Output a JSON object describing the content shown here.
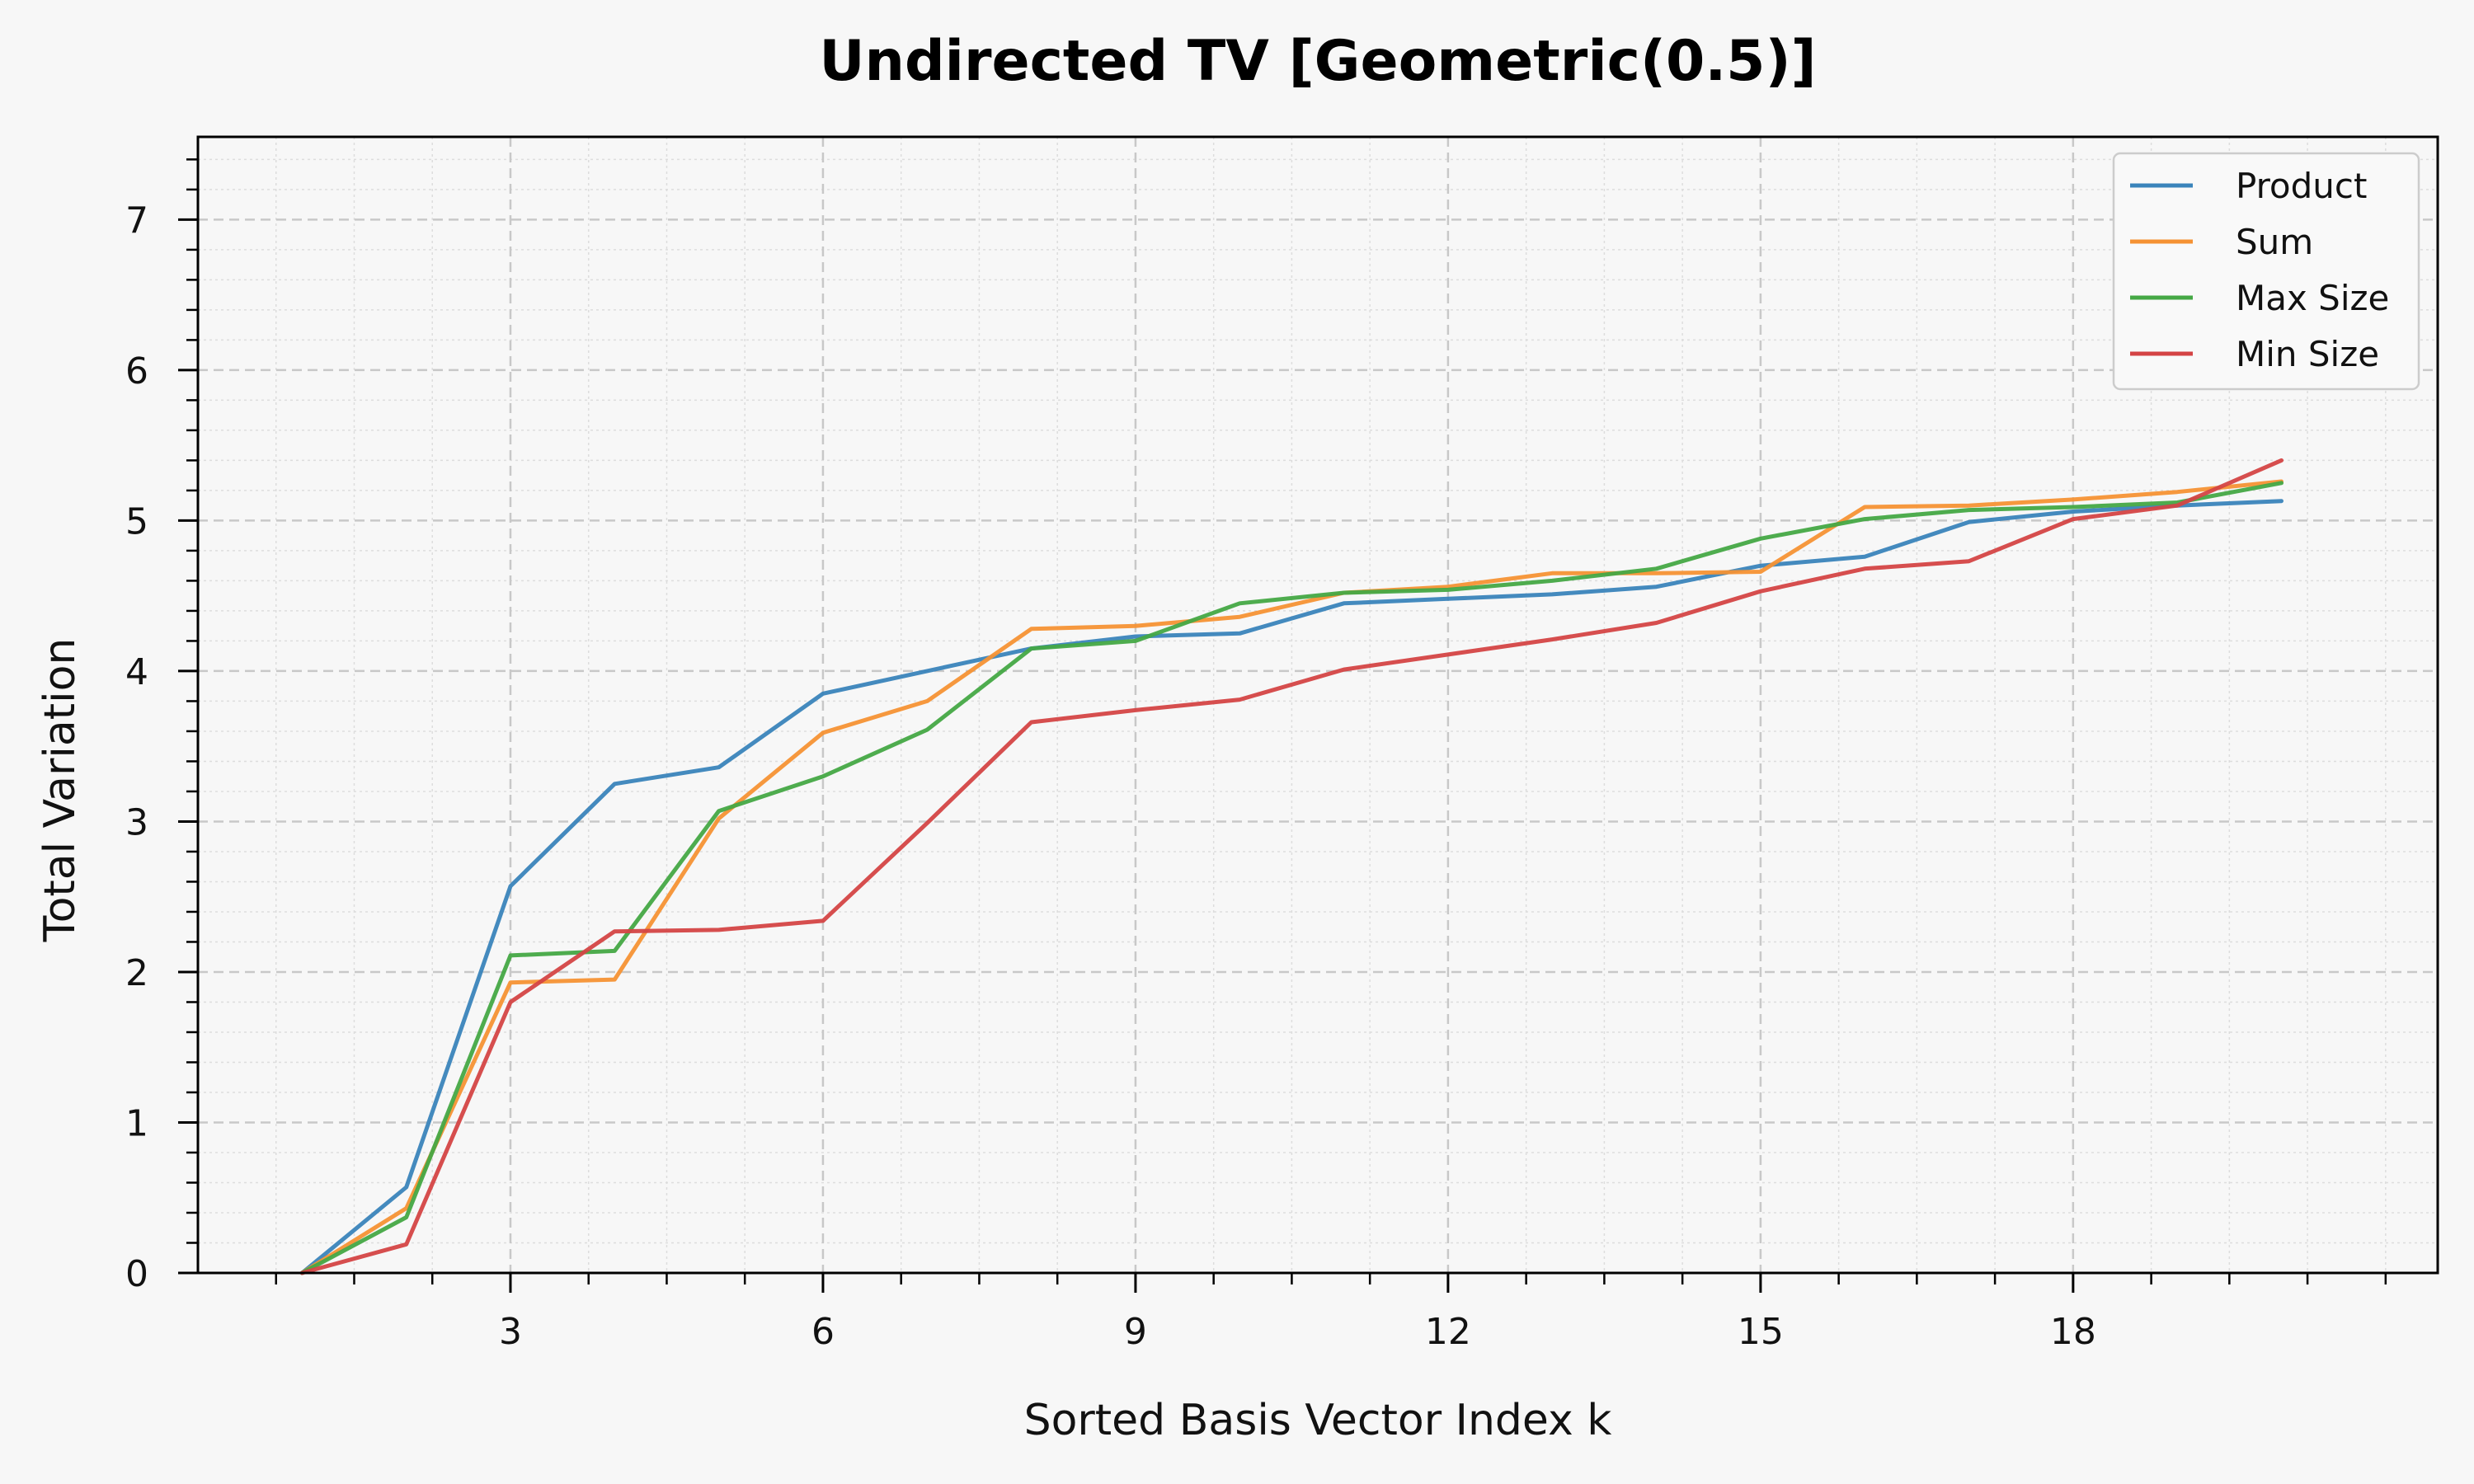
{
  "chart_data": {
    "type": "line",
    "title": "Undirected TV [Geometric(0.5)]",
    "xlabel": "Sorted Basis Vector Index k",
    "ylabel": "Total Variation",
    "xlim": [
      0.0,
      21.5
    ],
    "ylim": [
      0,
      7.55
    ],
    "xticks": [
      3,
      6,
      9,
      12,
      15,
      18
    ],
    "yticks": [
      0,
      1,
      2,
      3,
      4,
      5,
      6,
      7
    ],
    "x_minor_step": 0.75,
    "y_minor_step": 0.2,
    "grid": true,
    "legend_position": "top-right",
    "x": [
      1,
      2,
      3,
      4,
      5,
      6,
      7,
      8,
      9,
      10,
      11,
      12,
      13,
      14,
      15,
      16,
      17,
      18,
      19,
      20
    ],
    "series": [
      {
        "name": "Product",
        "color": "#3a84bb",
        "values": [
          0.0,
          0.57,
          2.57,
          3.25,
          3.36,
          3.85,
          4.0,
          4.15,
          4.23,
          4.25,
          4.45,
          4.48,
          4.51,
          4.56,
          4.7,
          4.76,
          4.99,
          5.06,
          5.1,
          5.13
        ]
      },
      {
        "name": "Sum",
        "color": "#f59234",
        "values": [
          0.0,
          0.43,
          1.93,
          1.95,
          3.02,
          3.59,
          3.8,
          4.28,
          4.3,
          4.36,
          4.52,
          4.56,
          4.65,
          4.65,
          4.66,
          5.09,
          5.1,
          5.14,
          5.19,
          5.26
        ]
      },
      {
        "name": "Max Size",
        "color": "#45a845",
        "values": [
          0.0,
          0.37,
          2.11,
          2.14,
          3.07,
          3.3,
          3.61,
          4.15,
          4.2,
          4.45,
          4.52,
          4.54,
          4.6,
          4.68,
          4.88,
          5.01,
          5.07,
          5.09,
          5.12,
          5.25
        ]
      },
      {
        "name": "Min Size",
        "color": "#d44445",
        "values": [
          0.0,
          0.19,
          1.8,
          2.27,
          2.28,
          2.34,
          2.99,
          3.66,
          3.74,
          3.81,
          4.01,
          4.11,
          4.21,
          4.32,
          4.53,
          4.68,
          4.73,
          5.01,
          5.1,
          5.4
        ]
      }
    ]
  }
}
